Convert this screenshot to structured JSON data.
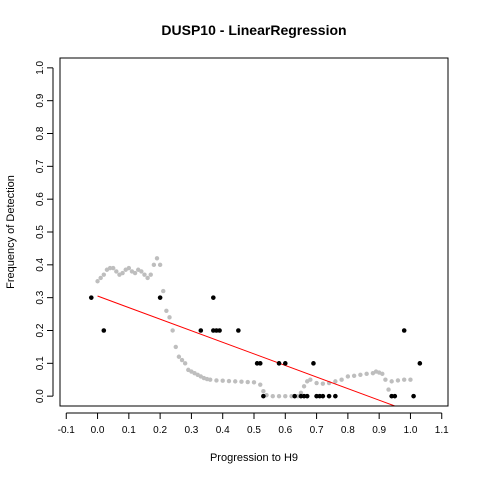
{
  "chart_data": {
    "type": "scatter",
    "title": "DUSP10 - LinearRegression",
    "xlabel": "Progression to H9",
    "ylabel": "Frequency of Detection",
    "xlim": [
      -0.12,
      1.12
    ],
    "ylim": [
      -0.03,
      1.03
    ],
    "x_ticks": [
      -0.1,
      0.0,
      0.1,
      0.2,
      0.3,
      0.4,
      0.5,
      0.6,
      0.7,
      0.8,
      0.9,
      1.0,
      1.1
    ],
    "x_tick_labels": [
      "-0.1",
      "0.0",
      "0.1",
      "0.2",
      "0.3",
      "0.4",
      "0.5",
      "0.6",
      "0.7",
      "0.8",
      "0.9",
      "1.0",
      "1.1"
    ],
    "y_ticks": [
      0.0,
      0.1,
      0.2,
      0.3,
      0.4,
      0.5,
      0.6,
      0.7,
      0.8,
      0.9,
      1.0
    ],
    "y_tick_labels": [
      "0.0",
      "0.1",
      "0.2",
      "0.3",
      "0.4",
      "0.5",
      "0.6",
      "0.7",
      "0.8",
      "0.9",
      "1.0"
    ],
    "grid": false,
    "series": [
      {
        "kind": "observed",
        "color": "#000000",
        "points": [
          [
            -0.02,
            0.3
          ],
          [
            0.02,
            0.2
          ],
          [
            0.2,
            0.3
          ],
          [
            0.33,
            0.2
          ],
          [
            0.37,
            0.3
          ],
          [
            0.37,
            0.2
          ],
          [
            0.38,
            0.2
          ],
          [
            0.39,
            0.2
          ],
          [
            0.45,
            0.2
          ],
          [
            0.51,
            0.1
          ],
          [
            0.52,
            0.1
          ],
          [
            0.53,
            0.0
          ],
          [
            0.58,
            0.1
          ],
          [
            0.6,
            0.1
          ],
          [
            0.63,
            0.0
          ],
          [
            0.65,
            0.0
          ],
          [
            0.66,
            0.0
          ],
          [
            0.67,
            0.0
          ],
          [
            0.69,
            0.1
          ],
          [
            0.7,
            0.0
          ],
          [
            0.71,
            0.0
          ],
          [
            0.72,
            0.0
          ],
          [
            0.74,
            0.0
          ],
          [
            0.76,
            0.0
          ],
          [
            0.94,
            0.0
          ],
          [
            0.95,
            0.0
          ],
          [
            0.98,
            0.2
          ],
          [
            1.01,
            0.0
          ],
          [
            1.03,
            0.1
          ]
        ]
      },
      {
        "kind": "smoothed",
        "color": "#bebebe",
        "points": [
          [
            0.0,
            0.35
          ],
          [
            0.01,
            0.36
          ],
          [
            0.02,
            0.37
          ],
          [
            0.03,
            0.385
          ],
          [
            0.04,
            0.39
          ],
          [
            0.05,
            0.39
          ],
          [
            0.06,
            0.38
          ],
          [
            0.07,
            0.37
          ],
          [
            0.08,
            0.375
          ],
          [
            0.09,
            0.385
          ],
          [
            0.1,
            0.39
          ],
          [
            0.11,
            0.38
          ],
          [
            0.12,
            0.375
          ],
          [
            0.13,
            0.385
          ],
          [
            0.14,
            0.38
          ],
          [
            0.15,
            0.37
          ],
          [
            0.16,
            0.36
          ],
          [
            0.17,
            0.37
          ],
          [
            0.18,
            0.4
          ],
          [
            0.19,
            0.42
          ],
          [
            0.2,
            0.4
          ],
          [
            0.21,
            0.32
          ],
          [
            0.22,
            0.26
          ],
          [
            0.23,
            0.24
          ],
          [
            0.24,
            0.2
          ],
          [
            0.25,
            0.15
          ],
          [
            0.26,
            0.12
          ],
          [
            0.27,
            0.11
          ],
          [
            0.28,
            0.1
          ],
          [
            0.29,
            0.08
          ],
          [
            0.3,
            0.075
          ],
          [
            0.31,
            0.07
          ],
          [
            0.32,
            0.065
          ],
          [
            0.33,
            0.06
          ],
          [
            0.34,
            0.055
          ],
          [
            0.35,
            0.052
          ],
          [
            0.36,
            0.05
          ],
          [
            0.38,
            0.048
          ],
          [
            0.4,
            0.047
          ],
          [
            0.42,
            0.046
          ],
          [
            0.44,
            0.045
          ],
          [
            0.46,
            0.044
          ],
          [
            0.48,
            0.043
          ],
          [
            0.5,
            0.042
          ],
          [
            0.52,
            0.035
          ],
          [
            0.53,
            0.015
          ],
          [
            0.54,
            0.003
          ],
          [
            0.56,
            0.0
          ],
          [
            0.58,
            0.0
          ],
          [
            0.6,
            0.0
          ],
          [
            0.62,
            0.0
          ],
          [
            0.64,
            0.0
          ],
          [
            0.65,
            0.01
          ],
          [
            0.66,
            0.03
          ],
          [
            0.67,
            0.045
          ],
          [
            0.68,
            0.05
          ],
          [
            0.7,
            0.04
          ],
          [
            0.72,
            0.038
          ],
          [
            0.74,
            0.04
          ],
          [
            0.76,
            0.045
          ],
          [
            0.78,
            0.05
          ],
          [
            0.8,
            0.06
          ],
          [
            0.82,
            0.062
          ],
          [
            0.84,
            0.065
          ],
          [
            0.86,
            0.068
          ],
          [
            0.88,
            0.07
          ],
          [
            0.89,
            0.075
          ],
          [
            0.9,
            0.072
          ],
          [
            0.91,
            0.068
          ],
          [
            0.92,
            0.05
          ],
          [
            0.93,
            0.02
          ],
          [
            0.94,
            0.045
          ],
          [
            0.96,
            0.048
          ],
          [
            0.98,
            0.05
          ],
          [
            1.0,
            0.05
          ]
        ]
      }
    ],
    "regression_line": {
      "color": "#ff0000",
      "from": [
        0.0,
        0.305
      ],
      "to": [
        0.95,
        -0.03
      ]
    }
  }
}
